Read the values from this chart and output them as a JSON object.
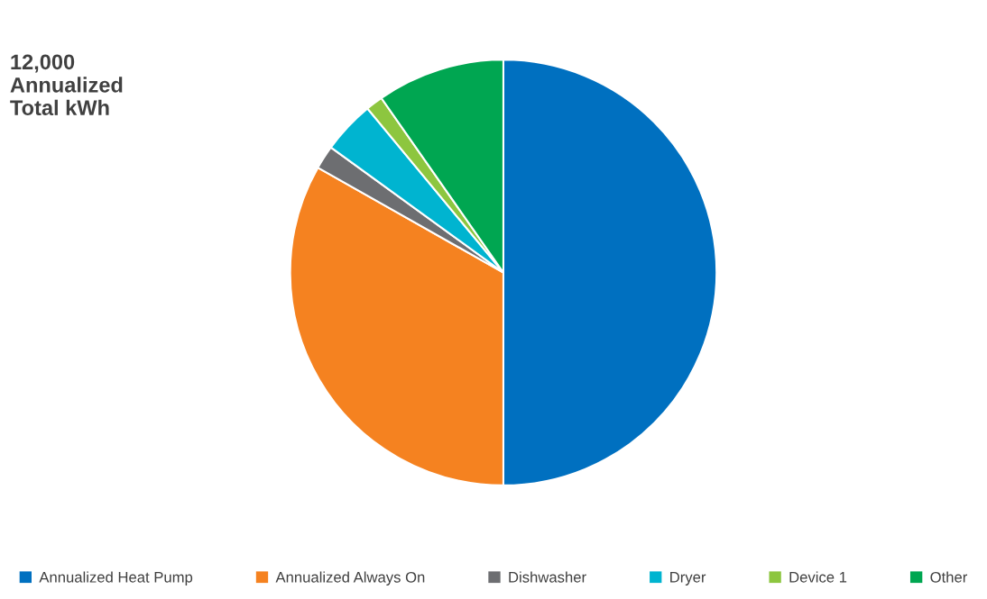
{
  "chart_data": {
    "type": "pie",
    "annotations": [
      "12,000\nAnnualized\nTotal kWh"
    ],
    "categories": [
      "Annualized Heat Pump",
      "Annualized Always On",
      "Dishwasher",
      "Dryer",
      "Device 1",
      "Other"
    ],
    "values": [
      50,
      33.2,
      1.8,
      4,
      1.3,
      9.7
    ],
    "colors": [
      "#0070c0",
      "#f58220",
      "#6d6e71",
      "#00b4d0",
      "#8dc63f",
      "#00a651"
    ],
    "legend": "bottom"
  }
}
